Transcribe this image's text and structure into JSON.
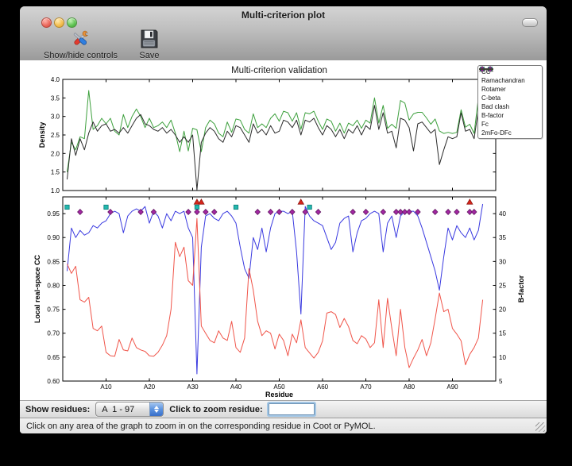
{
  "window": {
    "title": "Multi-criterion plot"
  },
  "toolbar": {
    "items": [
      {
        "label": "Show/hide controls",
        "icon": "tools-icon"
      },
      {
        "label": "Save",
        "icon": "save-icon"
      }
    ]
  },
  "controls": {
    "show_residues_label": "Show residues:",
    "chain_range_value": "A  1 - 97",
    "zoom_residue_label": "Click to zoom residue:",
    "zoom_residue_value": ""
  },
  "status_bar": {
    "text": "Click on any area of the graph to zoom in on the corresponding residue in Coot or PyMOL."
  },
  "chart_data": {
    "figure_title": "Multi-criterion validation",
    "type": "line",
    "residue_range": [
      1,
      97
    ],
    "xlabel": "Residue",
    "xlim": [
      0,
      100
    ],
    "xticks": {
      "values": [
        10,
        20,
        30,
        40,
        50,
        60,
        70,
        80,
        90
      ],
      "labels": [
        "A10",
        "A20",
        "A30",
        "A40",
        "A50",
        "A60",
        "A70",
        "A80",
        "A90"
      ]
    },
    "top_plot": {
      "ylabel": "Density",
      "ylim": [
        1.0,
        4.0
      ],
      "yticks": {
        "values": [
          1.0,
          1.5,
          2.0,
          2.5,
          3.0,
          3.5,
          4.0
        ],
        "labels": [
          "1.0",
          "1.5",
          "2.0",
          "2.5",
          "3.0",
          "3.5",
          "4.0"
        ]
      },
      "series": [
        {
          "name": "Fc",
          "color": "#3da03d",
          "values": [
            1.5,
            2.3,
            2.1,
            2.45,
            2.4,
            3.7,
            2.65,
            2.75,
            2.95,
            2.8,
            2.95,
            2.6,
            2.5,
            3.05,
            2.7,
            3.0,
            3.2,
            3.0,
            2.7,
            2.95,
            2.7,
            2.75,
            2.85,
            2.7,
            2.9,
            2.55,
            2.05,
            2.6,
            2.07,
            2.68,
            2.64,
            2.05,
            2.7,
            2.9,
            2.8,
            2.55,
            2.45,
            2.85,
            2.57,
            2.93,
            2.9,
            2.65,
            2.55,
            3.07,
            2.7,
            2.8,
            2.7,
            2.95,
            3.07,
            2.87,
            3.14,
            3.1,
            2.87,
            3.1,
            2.65,
            3.1,
            3.07,
            3.14,
            2.87,
            2.65,
            2.93,
            2.87,
            2.6,
            2.82,
            2.55,
            2.82,
            2.75,
            2.9,
            2.68,
            2.9,
            2.82,
            3.5,
            2.82,
            3.3,
            2.68,
            2.79,
            2.68,
            3.43,
            3.36,
            2.9,
            3.07,
            3.11,
            3.11,
            2.96,
            2.79,
            2.93,
            2.61,
            2.54,
            2.57,
            2.54,
            2.57,
            3.18,
            2.71,
            2.79,
            2.54,
            3.5,
            2.95
          ]
        },
        {
          "name": "2mFo-DFc",
          "color": "#2b2b2b",
          "values": [
            1.3,
            2.4,
            1.95,
            2.4,
            2.1,
            2.55,
            2.85,
            2.6,
            2.75,
            2.8,
            2.6,
            2.65,
            2.55,
            2.7,
            2.55,
            2.75,
            2.95,
            3.05,
            2.8,
            2.75,
            2.65,
            2.6,
            2.7,
            2.55,
            2.65,
            2.5,
            2.3,
            2.45,
            2.3,
            2.5,
            1.02,
            2.3,
            2.55,
            2.7,
            2.6,
            2.4,
            2.3,
            2.6,
            2.45,
            2.75,
            2.7,
            2.5,
            2.3,
            2.8,
            2.55,
            2.65,
            2.5,
            2.75,
            2.55,
            2.6,
            2.9,
            2.85,
            2.7,
            2.9,
            2.5,
            2.9,
            2.85,
            2.95,
            2.7,
            2.5,
            2.75,
            2.65,
            2.45,
            2.65,
            2.4,
            2.65,
            2.55,
            2.75,
            2.5,
            2.75,
            2.65,
            3.3,
            2.65,
            3.1,
            2.55,
            2.6,
            2.15,
            2.95,
            2.9,
            2.7,
            2.07,
            2.8,
            2.85,
            2.7,
            2.55,
            2.65,
            1.7,
            2.1,
            2.45,
            2.4,
            2.45,
            3.1,
            2.6,
            2.65,
            2.4,
            3.2,
            2.95
          ]
        }
      ]
    },
    "bottom_plot": {
      "ylabel_left": "Local real-space CC",
      "ylim_left": [
        0.6,
        0.985
      ],
      "yticks_left": {
        "values": [
          0.6,
          0.65,
          0.7,
          0.75,
          0.8,
          0.85,
          0.9,
          0.95
        ],
        "labels": [
          "0.60",
          "0.65",
          "0.70",
          "0.75",
          "0.80",
          "0.85",
          "0.90",
          "0.95"
        ]
      },
      "ylabel_right": "B-factor",
      "ylim_right": [
        5,
        43.5
      ],
      "yticks_right": {
        "values": [
          5,
          10,
          15,
          20,
          25,
          30,
          35,
          40
        ],
        "labels": [
          "5",
          "10",
          "15",
          "20",
          "25",
          "30",
          "35",
          "40"
        ]
      },
      "series": [
        {
          "name": "CC",
          "axis": "left",
          "color": "#3a3ae0",
          "values": [
            0.83,
            0.92,
            0.9,
            0.915,
            0.905,
            0.91,
            0.925,
            0.92,
            0.93,
            0.935,
            0.95,
            0.955,
            0.95,
            0.91,
            0.945,
            0.955,
            0.96,
            0.955,
            0.965,
            0.93,
            0.955,
            0.945,
            0.92,
            0.95,
            0.935,
            0.955,
            0.95,
            0.955,
            0.92,
            0.9,
            0.615,
            0.88,
            0.945,
            0.95,
            0.94,
            0.935,
            0.95,
            0.955,
            0.945,
            0.93,
            0.88,
            0.835,
            0.815,
            0.9,
            0.875,
            0.92,
            0.87,
            0.92,
            0.95,
            0.955,
            0.955,
            0.95,
            0.955,
            0.87,
            0.74,
            0.965,
            0.945,
            0.935,
            0.93,
            0.925,
            0.9,
            0.875,
            0.89,
            0.93,
            0.94,
            0.945,
            0.87,
            0.91,
            0.935,
            0.94,
            0.95,
            0.955,
            0.95,
            0.87,
            0.93,
            0.945,
            0.9,
            0.945,
            0.955,
            0.955,
            0.955,
            0.945,
            0.92,
            0.89,
            0.86,
            0.83,
            0.79,
            0.86,
            0.92,
            0.895,
            0.925,
            0.91,
            0.9,
            0.92,
            0.895,
            0.915,
            0.97
          ]
        },
        {
          "name": "B-factor",
          "axis": "right",
          "color": "#f0554a",
          "values": [
            29.5,
            27.5,
            29,
            22,
            21.5,
            22.5,
            16,
            15.5,
            16.5,
            11,
            10.3,
            10.2,
            13.7,
            11.5,
            11.3,
            14,
            12,
            11.5,
            11.2,
            10.3,
            10.2,
            11,
            12.5,
            14.5,
            20,
            34,
            31,
            33,
            26,
            25,
            39,
            16.5,
            15,
            13.5,
            13,
            15.5,
            14,
            13.5,
            17.5,
            12,
            11,
            14,
            28.5,
            24,
            17.5,
            14.5,
            15.5,
            15,
            11.7,
            14.8,
            13.5,
            10.3,
            14.8,
            13,
            17.8,
            12,
            10.9,
            9.8,
            11,
            13.4,
            19.2,
            19.5,
            18.9,
            16.2,
            18.1,
            16.4,
            13.5,
            12.8,
            14.5,
            13.8,
            12,
            13,
            22,
            12,
            22.3,
            16,
            10.3,
            20,
            12,
            7.8,
            9.8,
            11.5,
            13.7,
            10.3,
            13,
            18,
            23.4,
            19.5,
            20,
            16,
            14.8,
            13.4,
            8.4,
            10.6,
            12,
            14,
            22
          ]
        }
      ],
      "outlier_markers": [
        {
          "name": "Ramachandran",
          "shape": "circle",
          "color": "#2f9e2f",
          "edge": "#1b6b1b",
          "y_cc": 0.9745,
          "residues": []
        },
        {
          "name": "Rotamer",
          "shape": "triangle",
          "color": "#d7261b",
          "edge": "#8e1410",
          "y_cc": 0.9745,
          "residues": [
            31,
            32,
            55,
            94
          ]
        },
        {
          "name": "C-beta",
          "shape": "square",
          "color": "#23b7ae",
          "edge": "#0e7d78",
          "y_cc": 0.9635,
          "residues": [
            1,
            10,
            31,
            40,
            57
          ]
        },
        {
          "name": "Bad clash",
          "shape": "diamond",
          "color": "#a227a2",
          "edge": "#611761",
          "y_cc": 0.9535,
          "residues": [
            4,
            11,
            18,
            21,
            29,
            31,
            33,
            35,
            45,
            48,
            50,
            53,
            56,
            59,
            67,
            70,
            74,
            77,
            78,
            79,
            80,
            82,
            86,
            89,
            91,
            94,
            95
          ]
        }
      ]
    },
    "legend": {
      "position": "upper right",
      "entries": [
        {
          "label": "CC",
          "type": "line",
          "color": "#3a3ae0"
        },
        {
          "label": "Ramachandran",
          "type": "circle",
          "color": "#2f9e2f"
        },
        {
          "label": "Rotamer",
          "type": "triangle",
          "color": "#d7261b"
        },
        {
          "label": "C-beta",
          "type": "square",
          "color": "#23b7ae"
        },
        {
          "label": "Bad clash",
          "type": "diamond",
          "color": "#a227a2"
        },
        {
          "label": "B-factor",
          "type": "line",
          "color": "#f0554a"
        },
        {
          "label": "Fc",
          "type": "line",
          "color": "#3da03d"
        },
        {
          "label": "2mFo-DFc",
          "type": "line",
          "color": "#2b2b2b"
        }
      ]
    }
  }
}
